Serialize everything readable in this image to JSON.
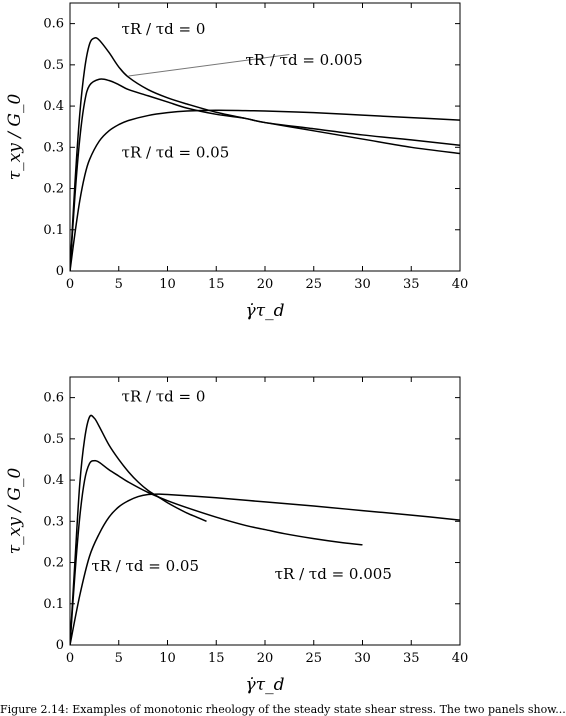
{
  "chart_data": [
    {
      "type": "line",
      "xlabel": "γ̇τ_d",
      "ylabel": "τ_xy / G_0",
      "xlim": [
        0,
        40
      ],
      "ylim": [
        0,
        0.65
      ],
      "x_ticks": [
        "0",
        "5",
        "10",
        "15",
        "20",
        "25",
        "30",
        "35",
        "40"
      ],
      "y_ticks": [
        "0",
        "0.1",
        "0.2",
        "0.3",
        "0.4",
        "0.5",
        "0.6"
      ],
      "grid": false,
      "series": [
        {
          "name": "τR / τd = 0",
          "x": [
            0,
            0.5,
            1,
            1.5,
            2,
            2.5,
            3,
            4,
            5,
            6,
            8,
            10,
            12,
            15,
            18,
            20,
            25,
            30,
            35,
            40
          ],
          "y": [
            0,
            0.21,
            0.38,
            0.49,
            0.55,
            0.565,
            0.56,
            0.53,
            0.495,
            0.47,
            0.44,
            0.42,
            0.405,
            0.385,
            0.37,
            0.36,
            0.34,
            0.32,
            0.3,
            0.285
          ]
        },
        {
          "name": "τR / τd = 0.005",
          "x": [
            0,
            0.5,
            1,
            1.5,
            2,
            3,
            4,
            5,
            6,
            8,
            10,
            12,
            15,
            18,
            20,
            25,
            30,
            35,
            40
          ],
          "y": [
            0,
            0.18,
            0.32,
            0.41,
            0.45,
            0.465,
            0.462,
            0.452,
            0.44,
            0.425,
            0.41,
            0.395,
            0.38,
            0.37,
            0.36,
            0.345,
            0.33,
            0.318,
            0.305
          ]
        },
        {
          "name": "τR / τd = 0.05",
          "x": [
            0,
            0.5,
            1,
            1.5,
            2,
            3,
            4,
            5,
            6,
            8,
            10,
            12,
            15,
            18,
            20,
            25,
            30,
            35,
            40
          ],
          "y": [
            0,
            0.09,
            0.17,
            0.23,
            0.27,
            0.315,
            0.34,
            0.355,
            0.365,
            0.377,
            0.384,
            0.388,
            0.39,
            0.389,
            0.388,
            0.384,
            0.378,
            0.372,
            0.366
          ]
        }
      ],
      "annotations": [
        {
          "label": "τR / τd = 0",
          "x": 5.3,
          "y": 0.575
        },
        {
          "label": "τR / τd = 0.005",
          "x": 18,
          "y": 0.5
        },
        {
          "label": "τR / τd = 0.05",
          "x": 5.3,
          "y": 0.275
        }
      ],
      "pointer": {
        "from": [
          22.5,
          0.525
        ],
        "to": [
          6,
          0.473
        ]
      }
    },
    {
      "type": "line",
      "xlabel": "γ̇τ_d",
      "ylabel": "τ_xy / G_0",
      "xlim": [
        0,
        40
      ],
      "ylim": [
        0,
        0.65
      ],
      "x_ticks": [
        "0",
        "5",
        "10",
        "15",
        "20",
        "25",
        "30",
        "35",
        "40"
      ],
      "y_ticks": [
        "0",
        "0.1",
        "0.2",
        "0.3",
        "0.4",
        "0.5",
        "0.6"
      ],
      "grid": false,
      "series": [
        {
          "name": "τR / τd = 0",
          "x": [
            0,
            0.5,
            1,
            1.5,
            2,
            2.5,
            3,
            4,
            5,
            6,
            7,
            8,
            9,
            10,
            11,
            12,
            13,
            14
          ],
          "y": [
            0,
            0.2,
            0.39,
            0.5,
            0.553,
            0.55,
            0.53,
            0.485,
            0.45,
            0.42,
            0.395,
            0.375,
            0.36,
            0.345,
            0.332,
            0.32,
            0.31,
            0.3
          ]
        },
        {
          "name": "τR / τd = 0.005",
          "x": [
            0,
            0.5,
            1,
            1.5,
            2,
            2.5,
            3,
            4,
            5,
            6,
            8,
            10,
            12,
            15,
            18,
            20,
            22,
            25,
            28,
            30
          ],
          "y": [
            0,
            0.17,
            0.31,
            0.4,
            0.44,
            0.447,
            0.443,
            0.425,
            0.41,
            0.395,
            0.37,
            0.35,
            0.333,
            0.31,
            0.29,
            0.28,
            0.27,
            0.258,
            0.248,
            0.243
          ]
        },
        {
          "name": "τR / τd = 0.05",
          "x": [
            0,
            1,
            2,
            3,
            4,
            5,
            6,
            7,
            8,
            9,
            10,
            15,
            20,
            25,
            30,
            35,
            40
          ],
          "y": [
            0,
            0.12,
            0.215,
            0.27,
            0.31,
            0.335,
            0.35,
            0.36,
            0.365,
            0.366,
            0.365,
            0.357,
            0.347,
            0.337,
            0.326,
            0.315,
            0.303
          ]
        }
      ],
      "annotations": [
        {
          "label": "τR / τd = 0",
          "x": 5.3,
          "y": 0.59
        },
        {
          "label": "τR / τd = 0.05",
          "x": 2.2,
          "y": 0.18
        },
        {
          "label": "τR / τd = 0.005",
          "x": 21,
          "y": 0.16
        }
      ]
    }
  ],
  "caption": "Figure 2.14: Examples of monotonic rheology of the steady state shear stress. The two panels show..."
}
